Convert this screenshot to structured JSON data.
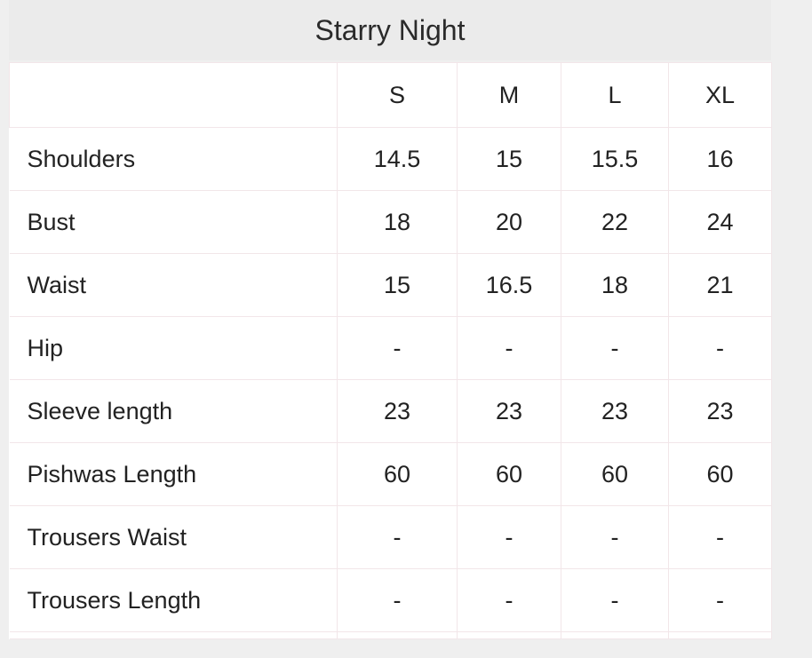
{
  "title": "Starry Night",
  "columns": [
    "",
    "S",
    "M",
    "L",
    "XL"
  ],
  "rows": [
    {
      "label": "Shoulders",
      "values": [
        "14.5",
        "15",
        "15.5",
        "16"
      ]
    },
    {
      "label": "Bust",
      "values": [
        "18",
        "20",
        "22",
        "24"
      ]
    },
    {
      "label": "Waist",
      "values": [
        "15",
        "16.5",
        "18",
        "21"
      ]
    },
    {
      "label": "Hip",
      "values": [
        "-",
        "-",
        "-",
        "-"
      ]
    },
    {
      "label": "Sleeve length",
      "values": [
        "23",
        "23",
        "23",
        "23"
      ]
    },
    {
      "label": "Pishwas Length",
      "values": [
        "60",
        "60",
        "60",
        "60"
      ]
    },
    {
      "label": "Trousers Waist",
      "values": [
        "-",
        "-",
        "-",
        "-"
      ]
    },
    {
      "label": "Trousers Length",
      "values": [
        "-",
        "-",
        "-",
        "-"
      ]
    }
  ]
}
